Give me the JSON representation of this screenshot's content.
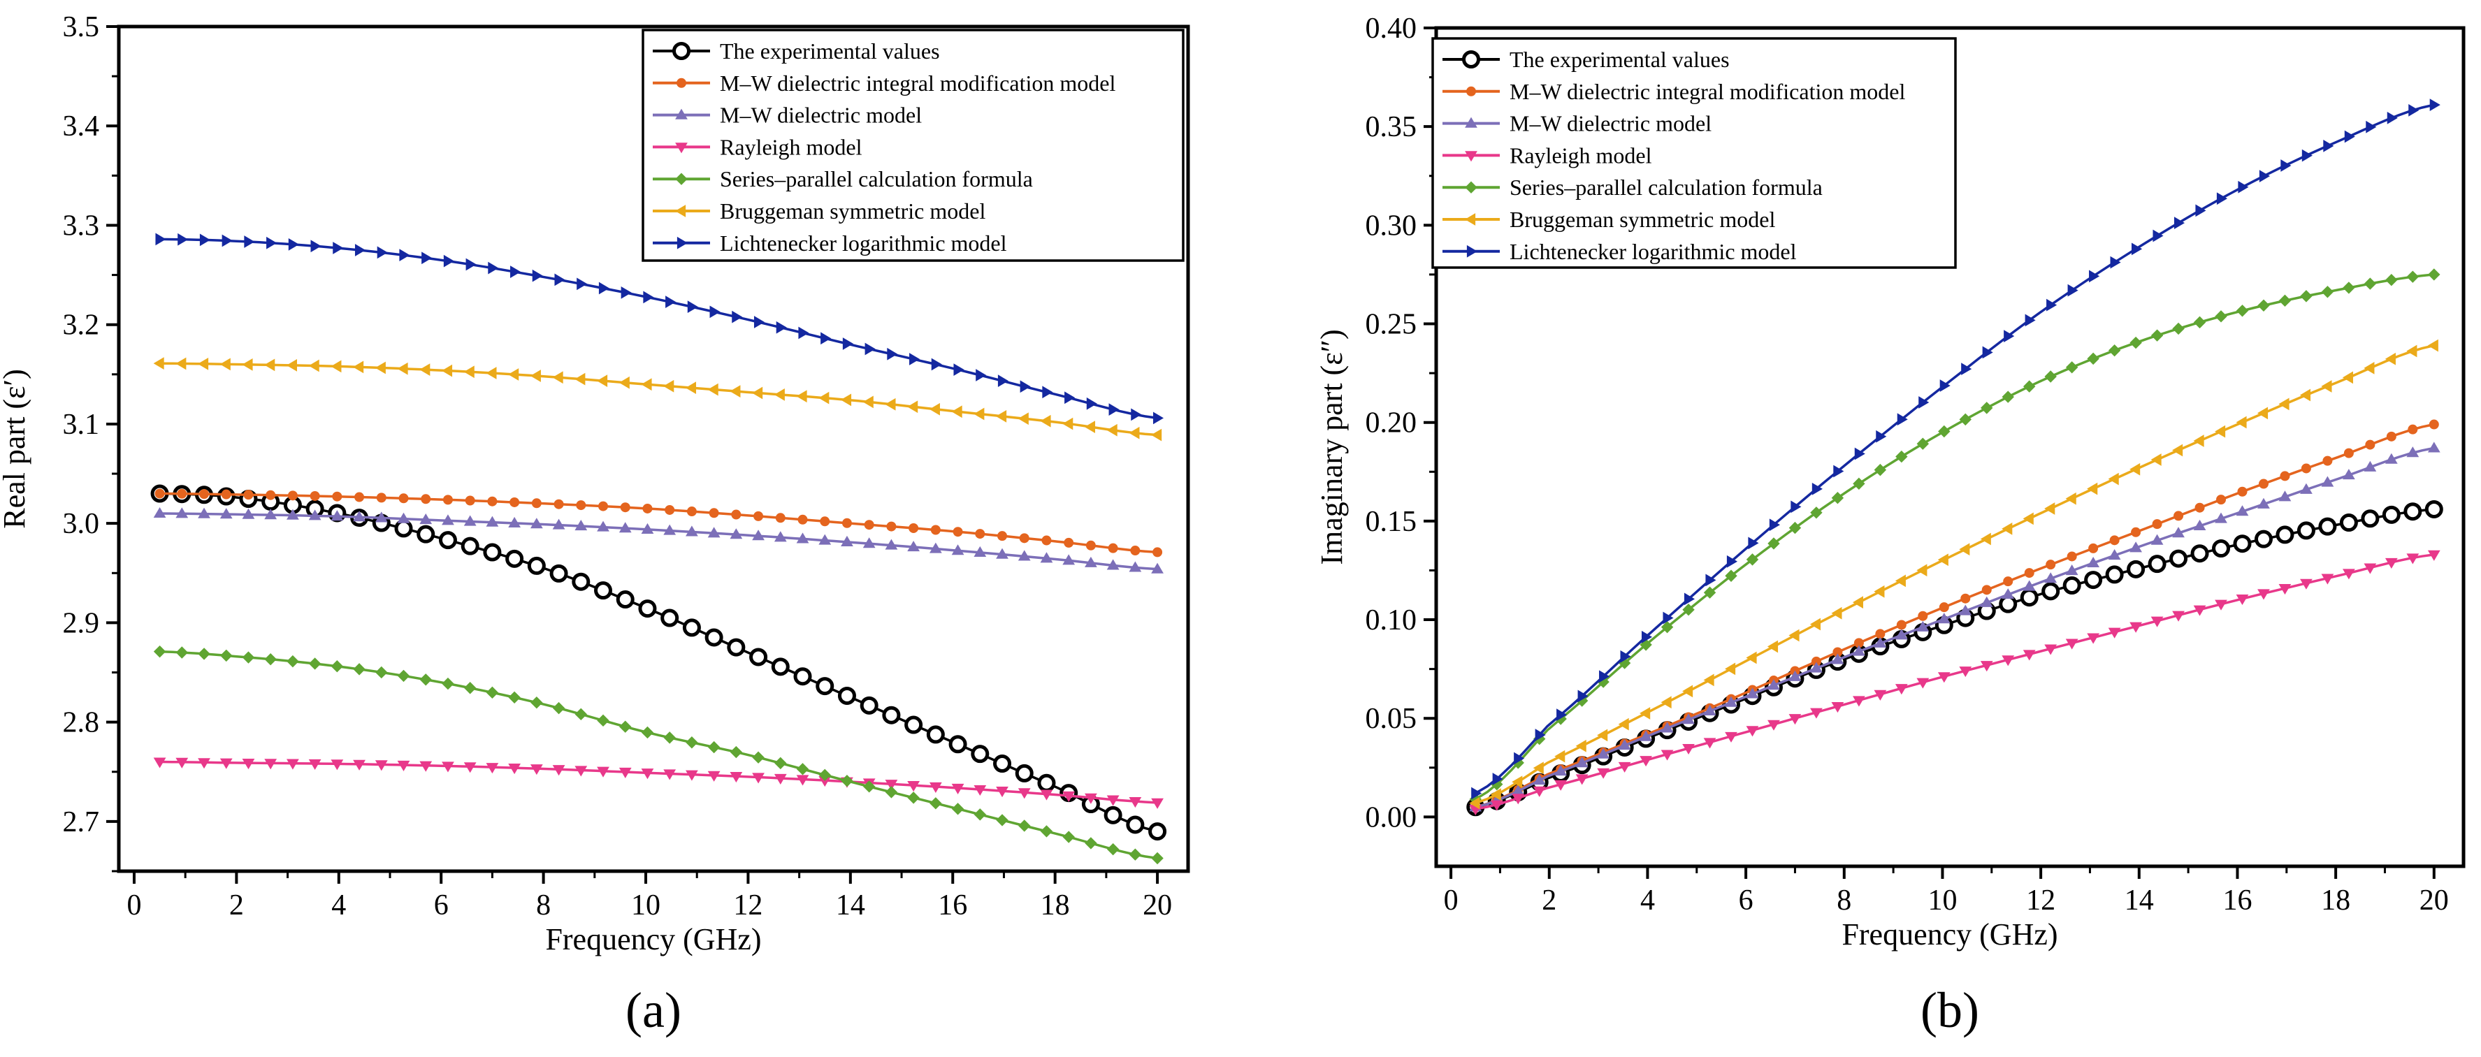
{
  "colors": {
    "experimental": "#000000",
    "mw_integral": "#E4641E",
    "mw_dielectric": "#7C6FB8",
    "rayleigh": "#E8388A",
    "series_parallel": "#5FA532",
    "bruggeman": "#EBAA1A",
    "lichtenecker": "#1428A0"
  },
  "chart_data": [
    {
      "type": "line",
      "panel_label": "(a)",
      "xlabel": "Frequency (GHz)",
      "ylabel": "Real part (ε′)",
      "xlim": [
        -0.3,
        20.6
      ],
      "ylim": [
        2.65,
        3.5
      ],
      "xticks": [
        0,
        2,
        4,
        6,
        8,
        10,
        12,
        14,
        16,
        18,
        20
      ],
      "xtick_labels": [
        "0",
        "2",
        "4",
        "6",
        "8",
        "10",
        "12",
        "14",
        "16",
        "18",
        "20"
      ],
      "yticks": [
        2.7,
        2.8,
        2.9,
        3.0,
        3.1,
        3.2,
        3.3,
        3.4,
        3.5
      ],
      "ytick_labels": [
        "2.7",
        "2.8",
        "2.9",
        "3.0",
        "3.1",
        "3.2",
        "3.3",
        "3.4",
        "3.5"
      ],
      "legend_position": "top-right",
      "x": [
        0.5,
        2,
        4,
        6,
        8,
        10,
        12,
        14,
        16,
        18,
        20
      ],
      "series": [
        {
          "key": "experimental",
          "name": "The experimental values",
          "marker": "circle-open",
          "values": [
            3.03,
            3.026,
            3.01,
            2.985,
            2.955,
            2.915,
            2.87,
            2.825,
            2.78,
            2.735,
            2.69
          ]
        },
        {
          "key": "mw_integral",
          "name": "M–W dielectric integral modification model",
          "marker": "circle",
          "values": [
            3.03,
            3.029,
            3.027,
            3.024,
            3.02,
            3.015,
            3.008,
            3.0,
            2.992,
            2.982,
            2.971
          ]
        },
        {
          "key": "mw_dielectric",
          "name": "M–W dielectric model",
          "marker": "triangle-up",
          "values": [
            3.01,
            3.009,
            3.007,
            3.003,
            2.999,
            2.994,
            2.988,
            2.981,
            2.973,
            2.964,
            2.954
          ]
        },
        {
          "key": "rayleigh",
          "name": "Rayleigh model",
          "marker": "triangle-down",
          "values": [
            2.76,
            2.759,
            2.758,
            2.756,
            2.753,
            2.749,
            2.745,
            2.74,
            2.734,
            2.727,
            2.719
          ]
        },
        {
          "key": "series_parallel",
          "name": "Series–parallel calculation formula",
          "marker": "diamond",
          "values": [
            2.871,
            2.866,
            2.856,
            2.84,
            2.818,
            2.79,
            2.767,
            2.74,
            2.714,
            2.688,
            2.663
          ]
        },
        {
          "key": "bruggeman",
          "name": "Bruggeman symmetric model",
          "marker": "triangle-left",
          "values": [
            3.161,
            3.16,
            3.158,
            3.154,
            3.148,
            3.14,
            3.132,
            3.124,
            3.113,
            3.102,
            3.089
          ]
        },
        {
          "key": "lichtenecker",
          "name": "Lichtenecker logarithmic model",
          "marker": "triangle-right",
          "values": [
            3.286,
            3.284,
            3.277,
            3.265,
            3.248,
            3.228,
            3.205,
            3.18,
            3.156,
            3.13,
            3.106
          ]
        }
      ]
    },
    {
      "type": "line",
      "panel_label": "(b)",
      "xlabel": "Frequency (GHz)",
      "ylabel": "Imaginary part (ε″)",
      "xlim": [
        -0.3,
        20.6
      ],
      "ylim": [
        -0.025,
        0.4
      ],
      "xticks": [
        0,
        2,
        4,
        6,
        8,
        10,
        12,
        14,
        16,
        18,
        20
      ],
      "xtick_labels": [
        "0",
        "2",
        "4",
        "6",
        "8",
        "10",
        "12",
        "14",
        "16",
        "18",
        "20"
      ],
      "yticks": [
        0.0,
        0.05,
        0.1,
        0.15,
        0.2,
        0.25,
        0.3,
        0.35,
        0.4
      ],
      "ytick_labels": [
        "0.00",
        "0.05",
        "0.10",
        "0.15",
        "0.20",
        "0.25",
        "0.30",
        "0.35",
        "0.40"
      ],
      "legend_position": "top-left",
      "x": [
        0.5,
        2,
        4,
        6,
        8,
        10,
        12,
        14,
        16,
        18,
        20
      ],
      "series": [
        {
          "key": "experimental",
          "name": "The experimental values",
          "marker": "circle-open",
          "values": [
            0.005,
            0.02,
            0.04,
            0.06,
            0.08,
            0.097,
            0.113,
            0.126,
            0.138,
            0.148,
            0.156
          ]
        },
        {
          "key": "mw_integral",
          "name": "M–W dielectric integral modification model",
          "marker": "circle",
          "values": [
            0.005,
            0.022,
            0.042,
            0.063,
            0.085,
            0.106,
            0.126,
            0.145,
            0.164,
            0.182,
            0.199
          ]
        },
        {
          "key": "mw_dielectric",
          "name": "M–W dielectric model",
          "marker": "triangle-up",
          "values": [
            0.005,
            0.021,
            0.041,
            0.061,
            0.081,
            0.1,
            0.119,
            0.137,
            0.154,
            0.171,
            0.187
          ]
        },
        {
          "key": "rayleigh",
          "name": "Rayleigh model",
          "marker": "triangle-down",
          "values": [
            0.004,
            0.015,
            0.029,
            0.043,
            0.057,
            0.071,
            0.084,
            0.097,
            0.11,
            0.122,
            0.133
          ]
        },
        {
          "key": "series_parallel",
          "name": "Series–parallel calculation formula",
          "marker": "diamond",
          "values": [
            0.009,
            0.045,
            0.088,
            0.128,
            0.164,
            0.195,
            0.221,
            0.241,
            0.256,
            0.267,
            0.275
          ]
        },
        {
          "key": "bruggeman",
          "name": "Bruggeman symmetric model",
          "marker": "triangle-left",
          "values": [
            0.007,
            0.028,
            0.053,
            0.079,
            0.105,
            0.13,
            0.154,
            0.177,
            0.199,
            0.22,
            0.239
          ]
        },
        {
          "key": "lichtenecker",
          "name": "Lichtenecker logarithmic model",
          "marker": "triangle-right",
          "values": [
            0.012,
            0.047,
            0.092,
            0.136,
            0.178,
            0.218,
            0.256,
            0.289,
            0.318,
            0.342,
            0.361
          ]
        }
      ]
    }
  ]
}
